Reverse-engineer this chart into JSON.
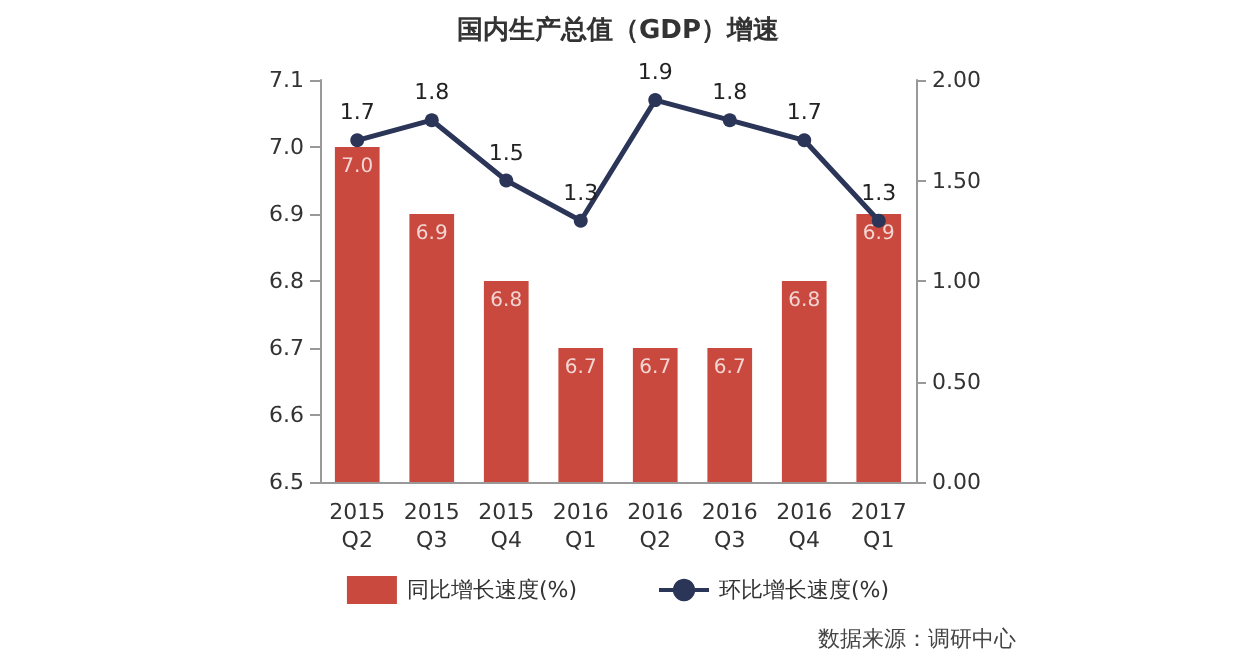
{
  "chart_data": {
    "type": "bar",
    "title": "国内生产总值（GDP）增速",
    "categories": [
      "2015\nQ2",
      "2015\nQ3",
      "2015\nQ4",
      "2016\nQ1",
      "2016\nQ2",
      "2016\nQ3",
      "2016\nQ4",
      "2017\nQ1"
    ],
    "series": [
      {
        "name": "同比增长速度(%)",
        "color": "#c9493f",
        "values": [
          7.0,
          6.9,
          6.8,
          6.7,
          6.7,
          6.7,
          6.8,
          6.9
        ],
        "value_labels": [
          "7.0",
          "6.9",
          "6.8",
          "6.7",
          "6.7",
          "6.7",
          "6.8",
          "6.9"
        ]
      },
      {
        "name": "环比增长速度(%)",
        "type": "line",
        "axis": "y2",
        "color": "#2b3558",
        "values": [
          1.7,
          1.8,
          1.5,
          1.3,
          1.9,
          1.8,
          1.7,
          1.3
        ],
        "value_labels": [
          "1.7",
          "1.8",
          "1.5",
          "1.3",
          "1.9",
          "1.8",
          "1.7",
          "1.3"
        ]
      }
    ],
    "ylim": [
      6.5,
      7.1
    ],
    "yticks": [
      6.5,
      6.6,
      6.7,
      6.8,
      6.9,
      {
        "value": 7.0,
        "label": "7.0"
      },
      7.1
    ],
    "y2lim": [
      0,
      2
    ],
    "y2ticks": [
      {
        "value": 0,
        "label": "0.00"
      },
      {
        "value": 0.5,
        "label": "0.50"
      },
      {
        "value": 1,
        "label": "1.00"
      },
      {
        "value": 1.5,
        "label": "1.50"
      },
      {
        "value": 2,
        "label": "2.00"
      }
    ],
    "marker": "circle",
    "legend": "bottom",
    "grid": false,
    "annotations": [
      "数据来源：调研中心"
    ]
  }
}
